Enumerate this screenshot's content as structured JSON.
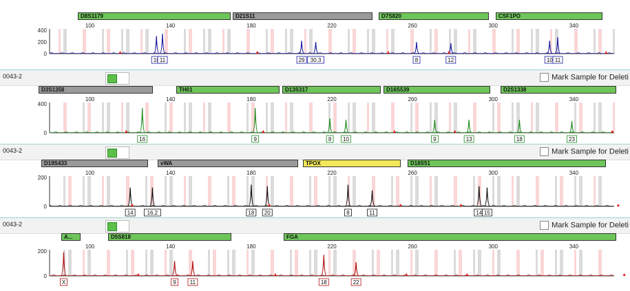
{
  "colors": {
    "blue": "#1a1aa0",
    "green": "#1e8a1e",
    "black": "#111111",
    "red": "#b01010"
  },
  "x_scale": {
    "min_bp": 80,
    "max_bp": 360,
    "ticks": [
      "100",
      "140",
      "180",
      "220",
      "260",
      "300",
      "340"
    ]
  },
  "y_ticks": {
    "panel1": [
      "400",
      "200",
      "0"
    ],
    "panel2": [
      "400",
      "0"
    ],
    "panel3": [
      "200",
      "0"
    ],
    "panel4": [
      "200",
      "0"
    ]
  },
  "panels": [
    {
      "sample": "",
      "color": "blue",
      "loci": [
        {
          "name": "D8S1179",
          "style": "green"
        },
        {
          "name": "D21S11",
          "style": "gray"
        },
        {
          "name": "D7S820",
          "style": "green"
        },
        {
          "name": "CSF1PO",
          "style": "green"
        }
      ],
      "peaks": [
        {
          "bp": 133,
          "h": 0.75,
          "label": "10"
        },
        {
          "bp": 136,
          "h": 0.85,
          "label": "11"
        },
        {
          "bp": 205,
          "h": 0.55,
          "label": "29"
        },
        {
          "bp": 212,
          "h": 0.5,
          "label": "30.3"
        },
        {
          "bp": 262,
          "h": 0.5,
          "label": "8"
        },
        {
          "bp": 279,
          "h": 0.45,
          "label": "12"
        },
        {
          "bp": 328,
          "h": 0.55,
          "label": "10"
        },
        {
          "bp": 332,
          "h": 0.7,
          "label": "11"
        }
      ]
    },
    {
      "sample": "0043-2",
      "mark_label": "Mark Sample for Deleti",
      "color": "green",
      "loci": [
        {
          "name": "D3S1358",
          "style": "gray"
        },
        {
          "name": "TH01",
          "style": "green"
        },
        {
          "name": "D13S317",
          "style": "green"
        },
        {
          "name": "D16S539",
          "style": "green"
        },
        {
          "name": "D2S1338",
          "style": "green"
        }
      ],
      "peaks": [
        {
          "bp": 126,
          "h": 0.85,
          "label": "16"
        },
        {
          "bp": 182,
          "h": 0.85,
          "label": "9"
        },
        {
          "bp": 219,
          "h": 0.5,
          "label": "8"
        },
        {
          "bp": 227,
          "h": 0.45,
          "label": "10"
        },
        {
          "bp": 271,
          "h": 0.45,
          "label": "9"
        },
        {
          "bp": 288,
          "h": 0.45,
          "label": "13"
        },
        {
          "bp": 301,
          "h": 0.0,
          "label": ""
        },
        {
          "bp": 301,
          "h": 0.0,
          "label": ""
        },
        {
          "bp": 302,
          "h": 0.0,
          "label": ""
        },
        {
          "bp": 302,
          "h": 0.0,
          "label": ""
        },
        {
          "bp": 313,
          "h": 0.45,
          "label": "18"
        },
        {
          "bp": 339,
          "h": 0.4,
          "label": "23"
        }
      ]
    },
    {
      "sample": "0043-2",
      "mark_label": "Mark Sample for Deleti",
      "color": "black",
      "loci": [
        {
          "name": "D19S433",
          "style": "gray"
        },
        {
          "name": "vWA",
          "style": "gray"
        },
        {
          "name": "TPOX",
          "style": "yellow"
        },
        {
          "name": "D18S51",
          "style": "green"
        }
      ],
      "peaks": [
        {
          "bp": 120,
          "h": 0.65,
          "label": "14"
        },
        {
          "bp": 131,
          "h": 0.65,
          "label": "16.2"
        },
        {
          "bp": 180,
          "h": 0.75,
          "label": "18"
        },
        {
          "bp": 188,
          "h": 0.7,
          "label": "20"
        },
        {
          "bp": 228,
          "h": 0.75,
          "label": "8"
        },
        {
          "bp": 240,
          "h": 0.55,
          "label": "11"
        },
        {
          "bp": 293,
          "h": 0.7,
          "label": "14"
        },
        {
          "bp": 297,
          "h": 0.65,
          "label": "15"
        }
      ]
    },
    {
      "sample": "0043-2",
      "mark_label": "Mark Sample for Deleti",
      "color": "red",
      "loci": [
        {
          "name": "A...",
          "style": "green"
        },
        {
          "name": "D5S818",
          "style": "green"
        },
        {
          "name": "FGA",
          "style": "green"
        }
      ],
      "peaks": [
        {
          "bp": 87,
          "h": 0.95,
          "label": "X"
        },
        {
          "bp": 142,
          "h": 0.6,
          "label": "9"
        },
        {
          "bp": 151,
          "h": 0.6,
          "label": "11"
        },
        {
          "bp": 216,
          "h": 0.85,
          "label": "18"
        },
        {
          "bp": 232,
          "h": 0.55,
          "label": "22"
        }
      ]
    }
  ]
}
